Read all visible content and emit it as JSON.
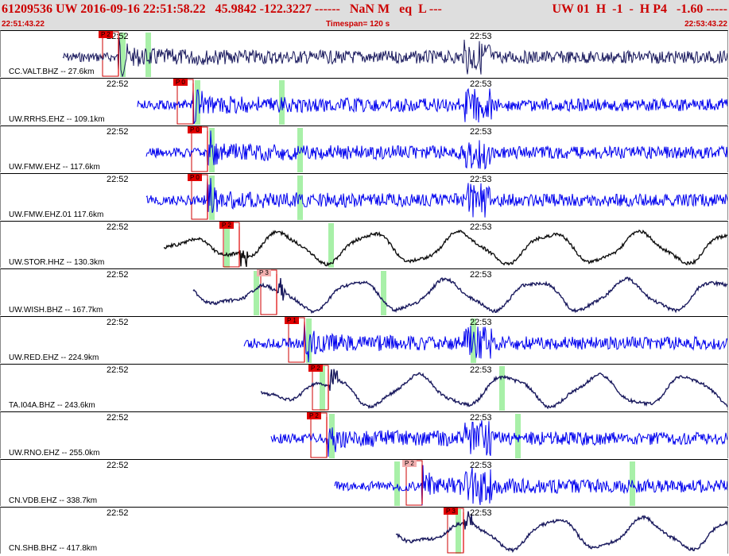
{
  "header": {
    "title": "61209536 UW 2016-09-16 22:51:58.22   45.9842 -122.3227 ------   NaN M   eq  L ---",
    "title_right": "UW 01  H  -1  -  H P4   -1.60 -----",
    "time_start": "22:51:43.22",
    "timespan": "Timespan= 120 s",
    "time_end": "22:53:43.22"
  },
  "colors": {
    "header_bg": "#dedede",
    "header_text": "#cc0000",
    "trace_blue": "#0000ee",
    "trace_navy": "#1a1a5e",
    "trace_black": "#111111",
    "marker_green": "#a8f0a8",
    "pick_red": "#e00000"
  },
  "panels": [
    {
      "station": "CC.VALT.BHZ -- 27.6km",
      "tick1": "22:52",
      "tick2": "22:53",
      "pick": "P 2",
      "color": "navy",
      "kind": "hf"
    },
    {
      "station": "UW.RRHS.EHZ -- 109.1km",
      "tick1": "22:52",
      "tick2": "22:53",
      "pick": "P 0",
      "color": "blue",
      "kind": "hf"
    },
    {
      "station": "UW.FMW.EHZ -- 117.6km",
      "tick1": "22:52",
      "tick2": "22:53",
      "pick": "P 0",
      "color": "blue",
      "kind": "hf"
    },
    {
      "station": "UW.FMW.EHZ.01 117.6km",
      "tick1": "22:52",
      "tick2": "22:53",
      "pick": "P 0",
      "color": "blue",
      "kind": "hf"
    },
    {
      "station": "UW.STOR.HHZ -- 130.3km",
      "tick1": "22:52",
      "tick2": "22:53",
      "pick": "P 2",
      "color": "black",
      "kind": "lf"
    },
    {
      "station": "UW.WISH.BHZ -- 167.7km",
      "tick1": "22:52",
      "tick2": "22:53",
      "pick": "P 3",
      "color": "navy",
      "kind": "lf"
    },
    {
      "station": "UW.RED.EHZ -- 224.9km",
      "tick1": "22:52",
      "tick2": "22:53",
      "pick": "P 1",
      "color": "blue",
      "kind": "hf"
    },
    {
      "station": "TA.I04A.BHZ -- 243.6km",
      "tick1": "22:52",
      "tick2": "22:53",
      "pick": "P 2",
      "color": "navy",
      "kind": "lf"
    },
    {
      "station": "UW.RNO.EHZ -- 255.0km",
      "tick1": "22:52",
      "tick2": "22:53",
      "pick": "P 2",
      "color": "blue",
      "kind": "hf"
    },
    {
      "station": "CN.VDB.EHZ -- 338.7km",
      "tick1": "22:52",
      "tick2": "22:53",
      "pick": "P 2",
      "color": "blue",
      "kind": "hf"
    },
    {
      "station": "CN.SHB.BHZ -- 417.8km",
      "tick1": "22:52",
      "tick2": "22:53",
      "pick": "P 3",
      "color": "navy",
      "kind": "lf"
    }
  ]
}
